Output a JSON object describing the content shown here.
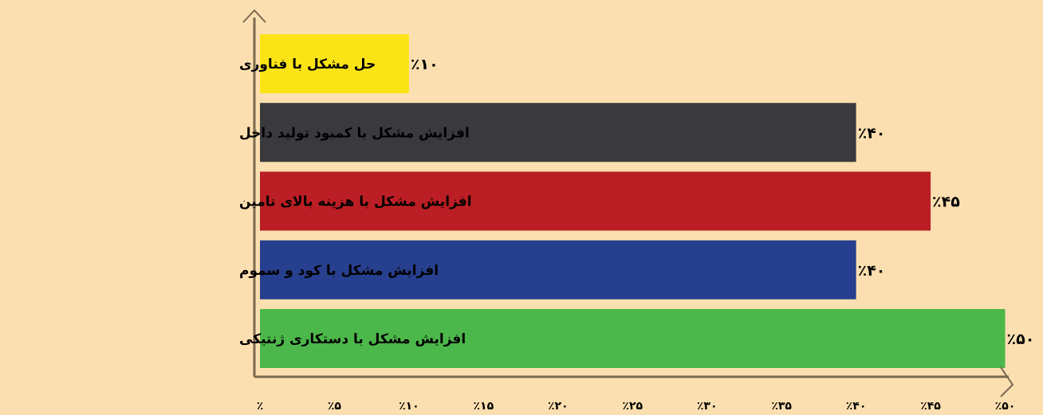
{
  "colors": {
    "background": "#FCDFB0",
    "axis": "#7A6A50"
  },
  "chart_data": {
    "type": "bar",
    "orientation": "horizontal",
    "title": "",
    "xlabel": "",
    "ylabel": "",
    "xlim": [
      0,
      50
    ],
    "grid": false,
    "legend": "none",
    "categories": [
      "حل مشکل با فناوری",
      "افزایش مشکل با کمبود تولید داخل",
      "افزایش مشکل با هزینه بالای تامین",
      "افزایش مشکل با کود و سموم",
      "افزایش مشکل با دستکاری ژنتیکی"
    ],
    "values": [
      10,
      40,
      45,
      40,
      50
    ],
    "value_labels": [
      "٪۱۰",
      "٪۴۰",
      "٪۴۵",
      "٪۴۰",
      "٪۵۰"
    ],
    "bar_colors": [
      "#FBE416",
      "#3A393E",
      "#BB1E24",
      "#263F8E",
      "#4CB74A"
    ],
    "x_ticks": [
      0,
      5,
      10,
      15,
      20,
      25,
      30,
      35,
      40,
      45,
      50
    ],
    "x_tick_labels": [
      "٪",
      "٪۵",
      "٪۱۰",
      "٪۱۵",
      "٪۲۰",
      "٪۲۵",
      "٪۳۰",
      "٪۳۵",
      "٪۴۰",
      "٪۴۵",
      "٪۵۰"
    ]
  }
}
